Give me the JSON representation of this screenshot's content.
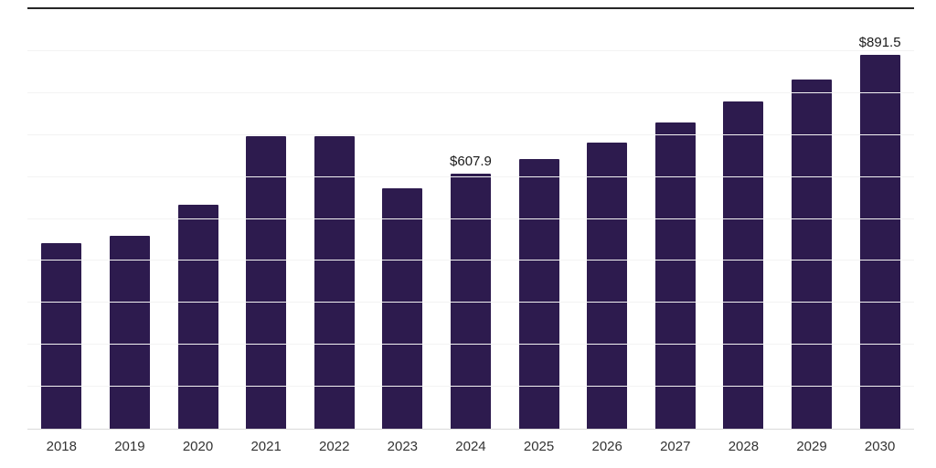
{
  "chart_data": {
    "type": "bar",
    "title": "",
    "xlabel": "",
    "ylabel": "",
    "categories": [
      "2018",
      "2019",
      "2020",
      "2021",
      "2022",
      "2023",
      "2024",
      "2025",
      "2026",
      "2027",
      "2028",
      "2029",
      "2030"
    ],
    "values": [
      443,
      460,
      533,
      698,
      698,
      573,
      607.9,
      643,
      681,
      730,
      781,
      832,
      891.5
    ],
    "data_labels": [
      {
        "category": "2024",
        "text": "$607.9"
      },
      {
        "category": "2030",
        "text": "$891.5"
      }
    ],
    "ylim": [
      0,
      1000
    ],
    "gridlines": true,
    "gridline_step": 100,
    "legend": "none",
    "bar_color": "#2d1b4e",
    "value_label_color": "#1a1a1a",
    "tick_label_color": "#333333"
  }
}
